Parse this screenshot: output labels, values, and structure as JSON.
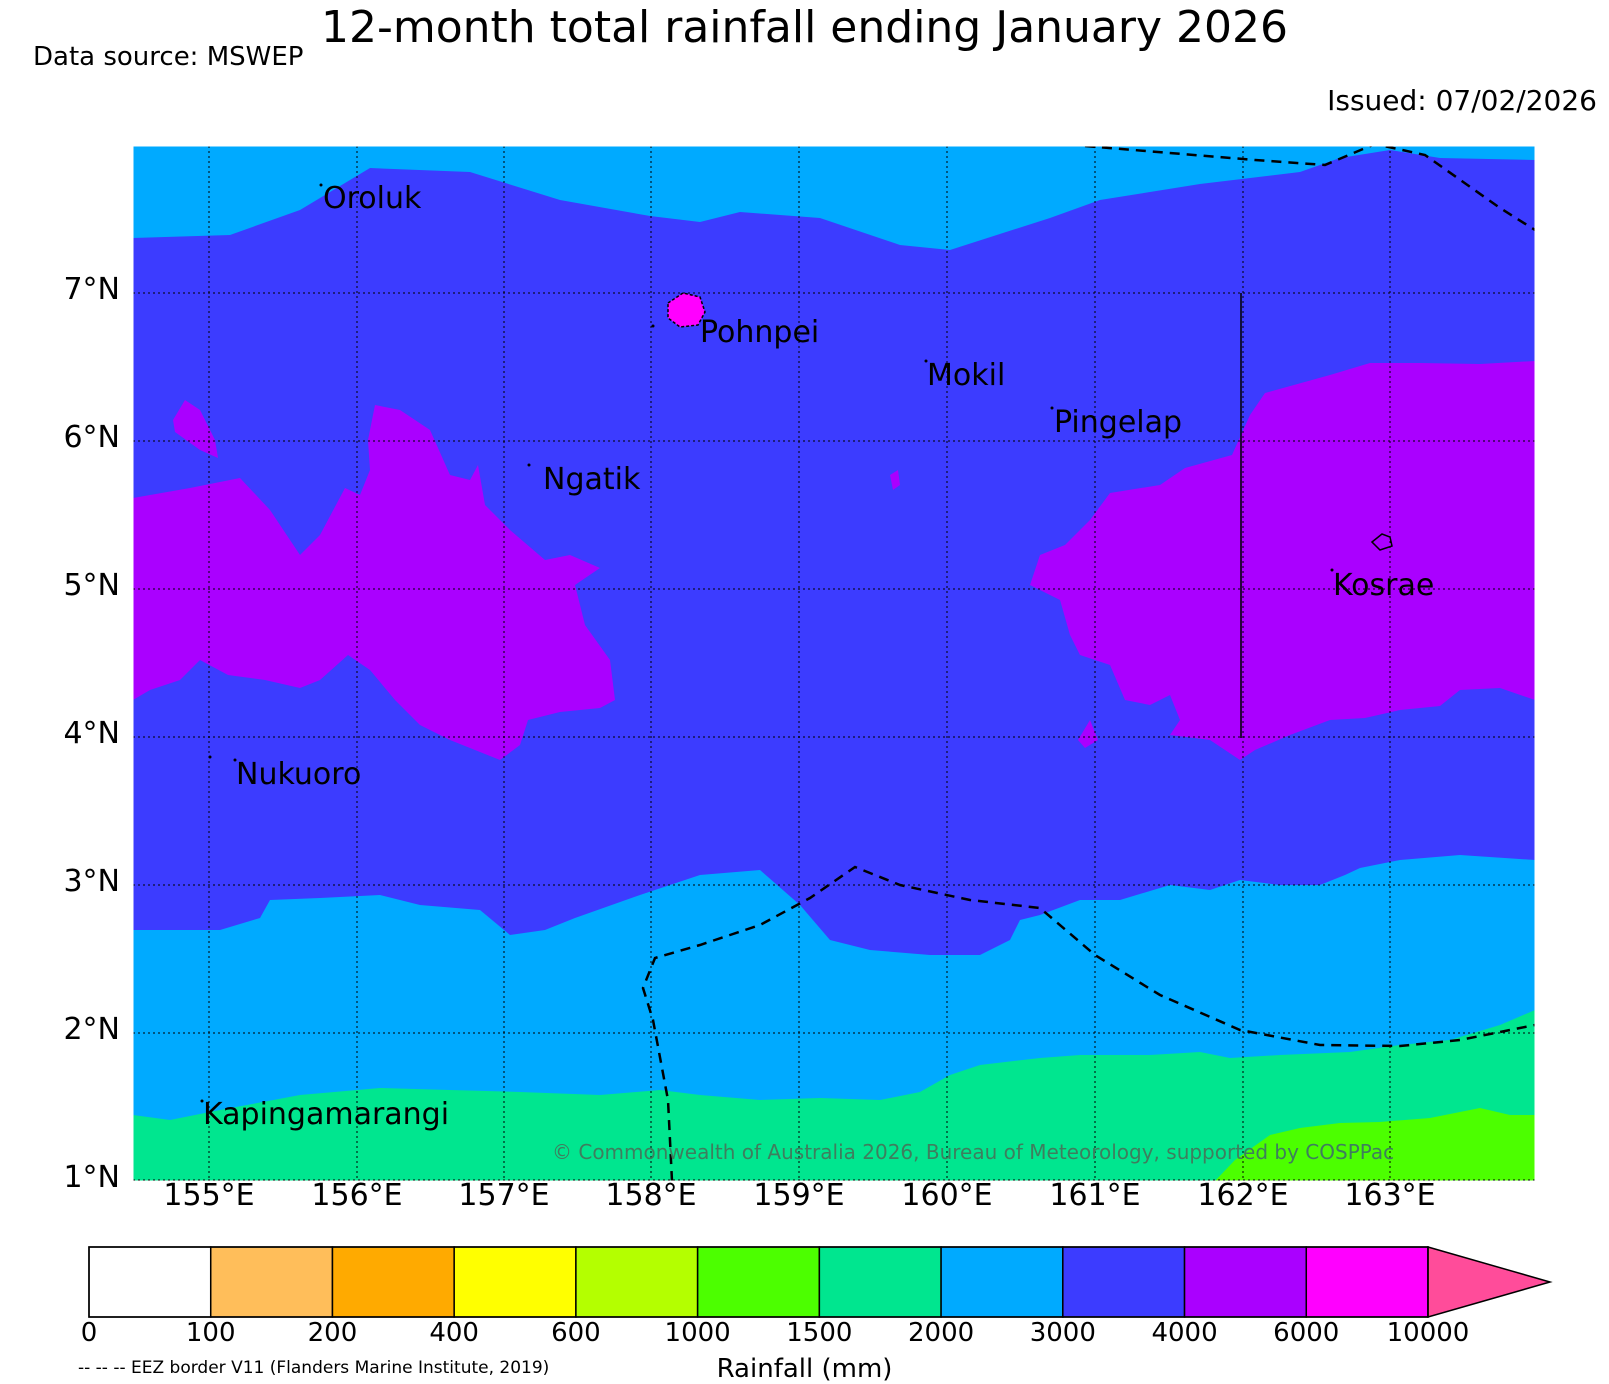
{
  "title": "12-month total rainfall ending January 2026",
  "data_source": "Data source: MSWEP",
  "issued": "Issued: 07/02/2026",
  "copyright": "© Commonwealth of Australia 2026, Bureau of Meteorology, supported by COSPPac",
  "map": {
    "lat_labels": [
      "7°N",
      "6°N",
      "5°N",
      "4°N",
      "3°N",
      "2°N",
      "1°N"
    ],
    "lon_labels": [
      "155°E",
      "156°E",
      "157°E",
      "158°E",
      "159°E",
      "160°E",
      "161°E",
      "162°E",
      "163°E"
    ],
    "places": [
      "Oroluk",
      "Pohnpei",
      "Mokil",
      "Pingelap",
      "Ngatik",
      "Kosrae",
      "Nukuoro",
      "Kapingamarangi"
    ]
  },
  "colorbar": {
    "label": "Rainfall (mm)",
    "ticks": [
      "0",
      "100",
      "200",
      "400",
      "600",
      "1000",
      "1500",
      "2000",
      "3000",
      "4000",
      "6000",
      "10000"
    ],
    "colors": [
      "#ffffff",
      "#ffbe5a",
      "#ffaa00",
      "#ffff00",
      "#b4ff00",
      "#4cff00",
      "#00e68f",
      "#00aaff",
      "#3c3cff",
      "#aa00ff",
      "#ff00ff"
    ],
    "extend_color": "#ff4c9a"
  },
  "eez_note": "-- -- -- EEZ border V11 (Flanders Marine Institute, 2019)"
}
